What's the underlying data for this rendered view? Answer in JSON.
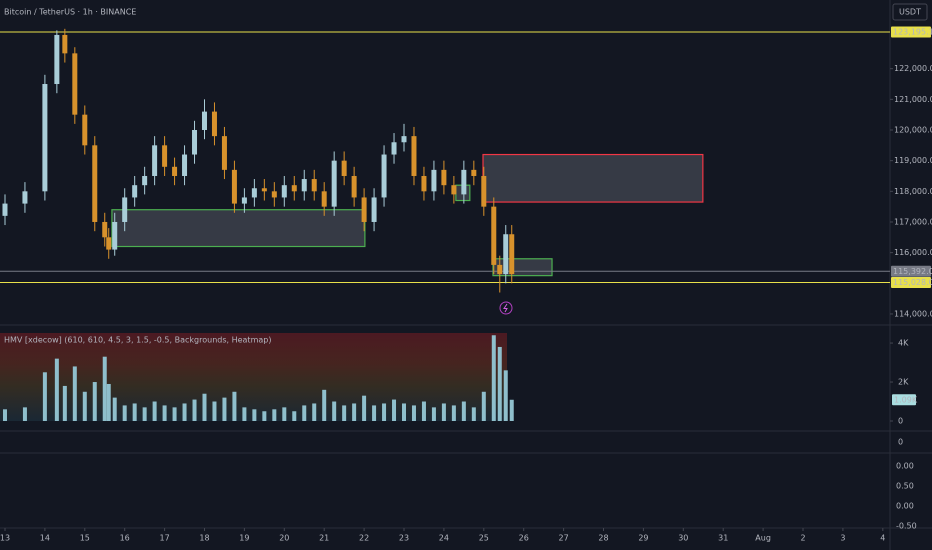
{
  "header": "Bitcoin / TetherUS · 1h · BINANCE",
  "currency": "USDT",
  "chart_data": {
    "type": "candlestick",
    "x": [
      0,
      0.5,
      1,
      1.3,
      1.5,
      1.75,
      2,
      2.25,
      2.5,
      2.6,
      2.75,
      3,
      3.25,
      3.5,
      3.75,
      4,
      4.25,
      4.5,
      4.75,
      5,
      5.25,
      5.5,
      5.75,
      6,
      6.25,
      6.5,
      6.75,
      7,
      7.25,
      7.5,
      7.75,
      8,
      8.25,
      8.5,
      8.75,
      9,
      9.25,
      9.5,
      9.75,
      10,
      10.25,
      10.5,
      10.75,
      11,
      11.25,
      11.5,
      11.75,
      12,
      12.25,
      12.4,
      12.55,
      12.7
    ],
    "open": [
      117200,
      117600,
      118000,
      121500,
      123100,
      122500,
      120500,
      119500,
      117000,
      116500,
      116100,
      117000,
      117800,
      118200,
      118500,
      119500,
      118800,
      118500,
      119200,
      120000,
      120600,
      119800,
      118700,
      117600,
      117800,
      118100,
      118000,
      117800,
      118200,
      118000,
      118400,
      118000,
      117500,
      119000,
      118500,
      117800,
      117000,
      117800,
      119200,
      119600,
      119800,
      118500,
      118000,
      118700,
      118200,
      117900,
      118700,
      118500,
      117500,
      115600,
      115300,
      116600
    ],
    "high": [
      117900,
      118300,
      121800,
      123250,
      123300,
      122700,
      120800,
      119800,
      117300,
      116800,
      117300,
      118100,
      118500,
      118800,
      119800,
      119800,
      119100,
      119500,
      120300,
      121000,
      120900,
      120100,
      119000,
      118100,
      118400,
      118400,
      118300,
      118500,
      118500,
      118700,
      118700,
      118300,
      119300,
      119300,
      118800,
      118100,
      118100,
      119500,
      119900,
      120200,
      120100,
      118800,
      119000,
      119000,
      118500,
      119000,
      119000,
      118800,
      117800,
      115900,
      116900,
      116900
    ],
    "low": [
      116900,
      117300,
      117700,
      121200,
      122200,
      120200,
      119200,
      116700,
      116200,
      115800,
      115900,
      116700,
      117500,
      117900,
      118200,
      118500,
      118200,
      118200,
      118900,
      119700,
      119500,
      118400,
      117300,
      117300,
      117500,
      117700,
      117500,
      117500,
      117700,
      117700,
      117700,
      117200,
      117200,
      118200,
      117500,
      116700,
      116700,
      117500,
      118900,
      119300,
      118200,
      117700,
      117700,
      117900,
      117600,
      117600,
      118200,
      117200,
      115300,
      114700,
      115000,
      115000
    ],
    "close": [
      117600,
      118000,
      121500,
      123100,
      122500,
      120500,
      119500,
      117000,
      116500,
      116100,
      117000,
      117800,
      118200,
      118500,
      119500,
      118800,
      118500,
      119200,
      120000,
      120600,
      119800,
      118700,
      117600,
      117800,
      118100,
      118000,
      117800,
      118200,
      118000,
      118400,
      118000,
      117500,
      119000,
      118500,
      117800,
      117000,
      117800,
      119200,
      119600,
      119800,
      118500,
      118000,
      118700,
      118200,
      117900,
      118700,
      118500,
      117500,
      115600,
      115300,
      116600,
      115300
    ],
    "up_color": "#a9cdd8",
    "down_color": "#d8922c",
    "xlim": [
      -0.125,
      22.18
    ],
    "xticks": [
      {
        "value": 0,
        "label": "13"
      },
      {
        "value": 1,
        "label": "14"
      },
      {
        "value": 2,
        "label": "15"
      },
      {
        "value": 3,
        "label": "16"
      },
      {
        "value": 4,
        "label": "17"
      },
      {
        "value": 5,
        "label": "18"
      },
      {
        "value": 6,
        "label": "19"
      },
      {
        "value": 7,
        "label": "20"
      },
      {
        "value": 8,
        "label": "21"
      },
      {
        "value": 9,
        "label": "22"
      },
      {
        "value": 10,
        "label": "23"
      },
      {
        "value": 11,
        "label": "24"
      },
      {
        "value": 12,
        "label": "25"
      },
      {
        "value": 13,
        "label": "26"
      },
      {
        "value": 14,
        "label": "27"
      },
      {
        "value": 15,
        "label": "28"
      },
      {
        "value": 16,
        "label": "29"
      },
      {
        "value": 17,
        "label": "30"
      },
      {
        "value": 18,
        "label": "31"
      },
      {
        "value": 19,
        "label": "Aug"
      },
      {
        "value": 20,
        "label": "2"
      },
      {
        "value": 21,
        "label": "3"
      },
      {
        "value": 22,
        "label": "4"
      }
    ],
    "ylim": [
      113640,
      124240
    ],
    "yticks": [
      {
        "value": 122000,
        "label": "122,000.00"
      },
      {
        "value": 121000,
        "label": "121,000.00"
      },
      {
        "value": 120000,
        "label": "120,000.00"
      },
      {
        "value": 119000,
        "label": "119,000.00"
      },
      {
        "value": 118000,
        "label": "118,000.00"
      },
      {
        "value": 117000,
        "label": "117,000.00"
      },
      {
        "value": 116000,
        "label": "116,000.00"
      },
      {
        "value": 114000,
        "label": "114,000.00"
      }
    ],
    "levels": [
      {
        "value": 123195.18,
        "label": "123,195.18",
        "color": "#e8e04a"
      },
      {
        "value": 115392,
        "label": "115,392.00",
        "color": "#787b86"
      },
      {
        "value": 115028.04,
        "label": "115,028.04",
        "color": "#e8e04a"
      }
    ],
    "zones": [
      {
        "x": [
          2.68,
          9.02
        ],
        "y": [
          116200,
          117400
        ],
        "color": "#4caf50"
      },
      {
        "x": [
          11.98,
          17.49
        ],
        "y": [
          117650,
          119200
        ],
        "color": "#f23645"
      },
      {
        "x": [
          11.3,
          11.65
        ],
        "y": [
          117700,
          118200
        ],
        "color": "#4caf50"
      },
      {
        "x": [
          12.23,
          13.71
        ],
        "y": [
          115250,
          115800
        ],
        "color": "#4caf50"
      }
    ],
    "volume": {
      "title": "HMV [xdecow] (610, 610, 4.5, 3, 1.5, -0.5, Backgrounds, Heatmap)",
      "values": [
        600,
        700,
        2500,
        3200,
        1800,
        2800,
        1500,
        2000,
        3300,
        1900,
        1200,
        800,
        900,
        700,
        1000,
        800,
        700,
        900,
        1100,
        1400,
        1000,
        1200,
        1500,
        700,
        600,
        500,
        600,
        700,
        500,
        800,
        900,
        1600,
        1000,
        800,
        900,
        1300,
        800,
        900,
        1100,
        900,
        800,
        1000,
        700,
        900,
        800,
        1000,
        700,
        1500,
        4400,
        3800,
        2600,
        1090
      ],
      "color": "#8fbfcc",
      "last_value_label": "1.09K",
      "ylim": [
        0,
        4670
      ],
      "yticks": [
        {
          "value": 4000,
          "label": "4K"
        },
        {
          "value": 2000,
          "label": "2K"
        },
        0
      ]
    },
    "pane3_ticks": [
      0
    ],
    "pane4_ticks": [
      "0.00",
      "0.50",
      "0.00",
      "-0.50"
    ]
  }
}
